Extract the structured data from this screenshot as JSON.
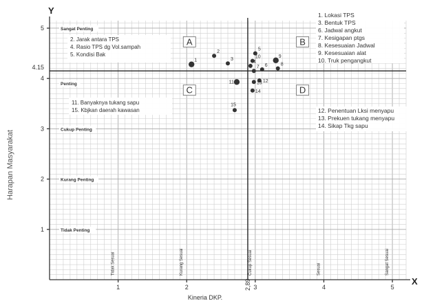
{
  "chart_data": {
    "type": "scatter",
    "title": "",
    "xlabel": "Kineria DKP.",
    "ylabel": "Harapan Masyarakat",
    "x_axis_letter": "X",
    "y_axis_letter": "Y",
    "xlim": [
      0,
      5.2
    ],
    "ylim": [
      0,
      5.15
    ],
    "x_ticks": [
      {
        "value": 1,
        "label": "1"
      },
      {
        "value": 2,
        "label": "2"
      },
      {
        "value": 3,
        "label": "3"
      },
      {
        "value": 4,
        "label": "4"
      },
      {
        "value": 5,
        "label": "5"
      }
    ],
    "y_ticks": [
      {
        "value": 1,
        "label": "1"
      },
      {
        "value": 2,
        "label": "2"
      },
      {
        "value": 3,
        "label": "3"
      },
      {
        "value": 4,
        "label": "4"
      },
      {
        "value": 5,
        "label": "5"
      }
    ],
    "x_mean": {
      "value": 2.89,
      "label": "2,89"
    },
    "y_mean": {
      "value": 4.15,
      "label": "4.15"
    },
    "quadrants": [
      "A",
      "B",
      "C",
      "D"
    ],
    "y_levels": [
      {
        "value": 5,
        "label": "Sangat Penting"
      },
      {
        "value": 4,
        "label": "Penting"
      },
      {
        "value": 3,
        "label": "Cukup Penting"
      },
      {
        "value": 2,
        "label": "Kurang Penting"
      },
      {
        "value": 1,
        "label": "Tidak Penting"
      }
    ],
    "x_levels": [
      {
        "value": 1,
        "label": "Tidak Sesuai"
      },
      {
        "value": 2,
        "label": "Kurang Sesuai"
      },
      {
        "value": 3,
        "label": "Cukup Sesuai"
      },
      {
        "value": 4,
        "label": "Sesuai"
      },
      {
        "value": 5,
        "label": "Sangat Sesuai"
      }
    ],
    "points": [
      {
        "label": "1",
        "x": 2.07,
        "y": 4.28
      },
      {
        "label": "2",
        "x": 2.4,
        "y": 4.45
      },
      {
        "label": "3",
        "x": 2.6,
        "y": 4.3
      },
      {
        "label": "4",
        "x": 2.93,
        "y": 4.25
      },
      {
        "label": "5",
        "x": 3.0,
        "y": 4.5
      },
      {
        "label": "6",
        "x": 3.1,
        "y": 4.18
      },
      {
        "label": "7",
        "x": 2.98,
        "y": 4.15
      },
      {
        "label": "8",
        "x": 3.33,
        "y": 4.2
      },
      {
        "label": "9",
        "x": 3.3,
        "y": 4.36
      },
      {
        "label": "10",
        "x": 2.96,
        "y": 4.35
      },
      {
        "label": "11",
        "x": 2.73,
        "y": 3.93
      },
      {
        "label": "12",
        "x": 3.06,
        "y": 3.96
      },
      {
        "label": "13",
        "x": 2.98,
        "y": 3.93
      },
      {
        "label": "14",
        "x": 2.96,
        "y": 3.76
      },
      {
        "label": "15",
        "x": 2.7,
        "y": 3.37
      }
    ],
    "legend_right": [
      "1. Lokasi TPS",
      "3. Bentuk TPS",
      "6. Jadwal angkut",
      "7. Kesigapan ptgs",
      "8. Kesesuaian Jadwal",
      "9. Kesesuaian alat",
      "10. Truk pengangkut",
      "12. Penentuan Lksi menyapu",
      "13. Prekuen tukang menyapu",
      "14. Sikap Tkg sapu"
    ],
    "legend_left_top": [
      "2. Jarak antara TPS",
      "4. Rasio TPS dg Vol.sampah",
      "5. Kondisi Bak"
    ],
    "legend_left_bottom": [
      "11. Banyaknya tukang sapu",
      "15. Kbjkan daerah kawasan"
    ],
    "grid": true
  }
}
